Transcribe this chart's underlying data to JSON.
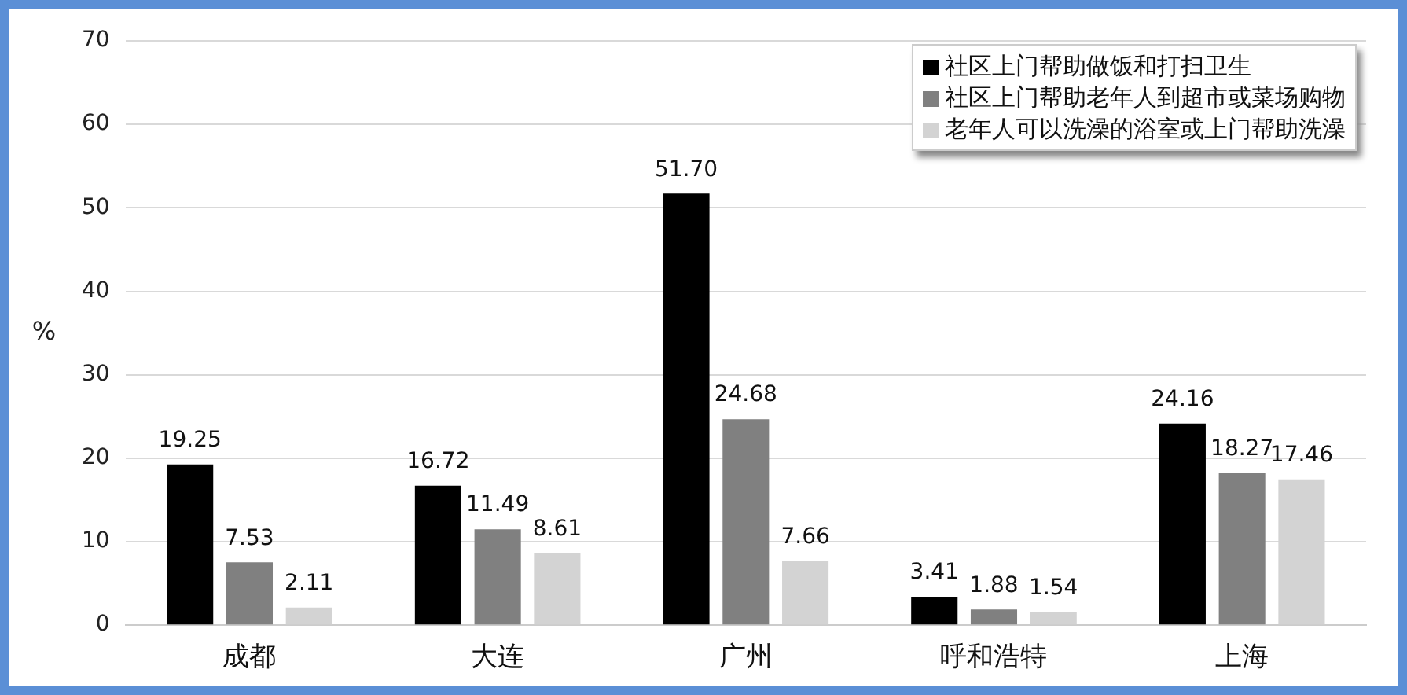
{
  "chart_data": {
    "type": "bar",
    "ylabel": "%",
    "categories": [
      "成都",
      "大连",
      "广州",
      "呼和浩特",
      "上海"
    ],
    "series": [
      {
        "name": "社区上门帮助做饭和打扫卫生",
        "color": "#000000",
        "values": [
          19.25,
          16.72,
          51.7,
          3.41,
          24.16
        ],
        "value_labels": [
          "19.25",
          "16.72",
          "51.70",
          "3.41",
          "24.16"
        ]
      },
      {
        "name": "社区上门帮助老年人到超市或菜场购物",
        "color": "#808080",
        "values": [
          7.53,
          11.49,
          24.68,
          1.88,
          18.27
        ],
        "value_labels": [
          "7.53",
          "11.49",
          "24.68",
          "1.88",
          "18.27"
        ]
      },
      {
        "name": "老年人可以洗澡的浴室或上门帮助洗澡",
        "color": "#d3d3d3",
        "values": [
          2.11,
          8.61,
          7.66,
          1.54,
          17.46
        ],
        "value_labels": [
          "2.11",
          "8.61",
          "7.66",
          "1.54",
          "17.46"
        ]
      }
    ],
    "ylim": [
      0,
      70
    ],
    "yticks": [
      0,
      10,
      20,
      30,
      40,
      50,
      60,
      70
    ],
    "grid": "y",
    "legend": "top right"
  }
}
